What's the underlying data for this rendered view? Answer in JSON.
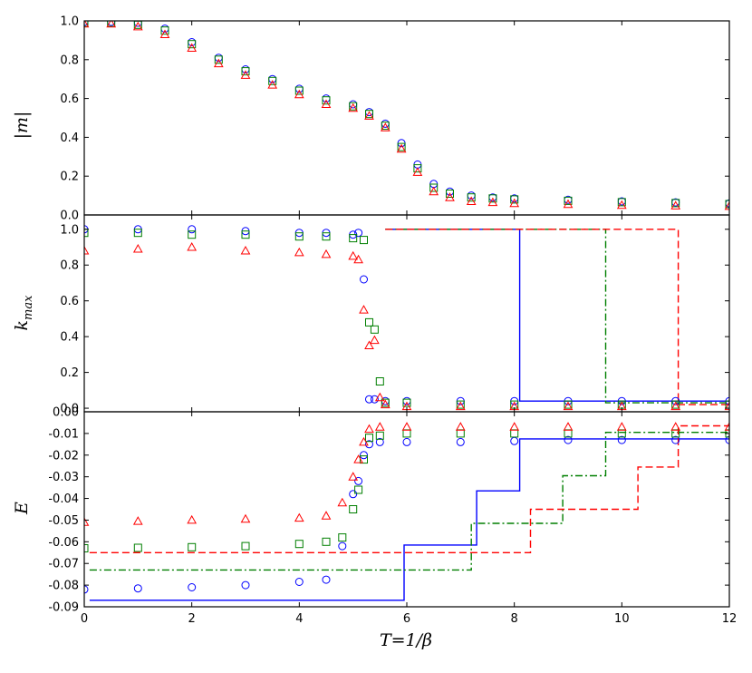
{
  "figure": {
    "xlabel": "T=1/β",
    "shared_x": {
      "range": [
        0,
        12
      ],
      "ticks": [
        0,
        2,
        4,
        6,
        8,
        10,
        12
      ],
      "tick_labels": [
        "0",
        "2",
        "4",
        "6",
        "8",
        "10",
        "12"
      ]
    }
  },
  "chart_data": [
    {
      "type": "scatter",
      "title": "",
      "xlabel": "T=1/β",
      "ylabel": "|m|",
      "xlim": [
        0,
        12
      ],
      "ylim": [
        0,
        1.0
      ],
      "yticks": [
        0.0,
        0.2,
        0.4,
        0.6,
        0.8,
        1.0
      ],
      "ytick_labels": [
        "0.0",
        "0.2",
        "0.4",
        "0.6",
        "0.8",
        "1.0"
      ],
      "grid": false,
      "legend": "none",
      "series": [
        {
          "name": "blue circles",
          "color": "#0000ff",
          "marker": "circle",
          "x": [
            0.0,
            0.5,
            1.0,
            1.5,
            2.0,
            2.5,
            3.0,
            3.5,
            4.0,
            4.5,
            5.0,
            5.3,
            5.6,
            5.9,
            6.2,
            6.5,
            6.8,
            7.2,
            7.6,
            8.0,
            9.0,
            10.0,
            11.0,
            12.0
          ],
          "y": [
            0.995,
            0.995,
            0.99,
            0.96,
            0.89,
            0.81,
            0.75,
            0.7,
            0.65,
            0.6,
            0.57,
            0.53,
            0.47,
            0.37,
            0.26,
            0.16,
            0.12,
            0.1,
            0.09,
            0.085,
            0.078,
            0.07,
            0.065,
            0.06
          ]
        },
        {
          "name": "green squares",
          "color": "#007f00",
          "marker": "square",
          "x": [
            0.0,
            0.5,
            1.0,
            1.5,
            2.0,
            2.5,
            3.0,
            3.5,
            4.0,
            4.5,
            5.0,
            5.3,
            5.6,
            5.9,
            6.2,
            6.5,
            6.8,
            7.2,
            7.6,
            8.0,
            9.0,
            10.0,
            11.0,
            12.0
          ],
          "y": [
            0.99,
            0.99,
            0.98,
            0.95,
            0.88,
            0.8,
            0.74,
            0.69,
            0.64,
            0.59,
            0.56,
            0.52,
            0.46,
            0.35,
            0.24,
            0.14,
            0.11,
            0.09,
            0.085,
            0.08,
            0.073,
            0.066,
            0.061,
            0.056
          ]
        },
        {
          "name": "red triangles",
          "color": "#ff0000",
          "marker": "triangle",
          "x": [
            0.0,
            0.5,
            1.0,
            1.5,
            2.0,
            2.5,
            3.0,
            3.5,
            4.0,
            4.5,
            5.0,
            5.3,
            5.6,
            5.9,
            6.2,
            6.5,
            6.8,
            7.2,
            7.6,
            8.0,
            9.0,
            10.0,
            11.0,
            12.0
          ],
          "y": [
            0.985,
            0.985,
            0.97,
            0.93,
            0.86,
            0.78,
            0.72,
            0.67,
            0.62,
            0.57,
            0.55,
            0.51,
            0.45,
            0.34,
            0.22,
            0.12,
            0.09,
            0.07,
            0.065,
            0.06,
            0.055,
            0.05,
            0.047,
            0.045
          ]
        }
      ]
    },
    {
      "type": "scatter",
      "title": "",
      "xlabel": "T=1/β",
      "ylabel": "k_max",
      "ylabel_base": "k",
      "ylabel_sub": "max",
      "xlim": [
        0,
        12
      ],
      "ylim": [
        -0.02,
        1.08
      ],
      "yticks": [
        0.0,
        0.2,
        0.4,
        0.6,
        0.8,
        1.0
      ],
      "ytick_labels": [
        "0.0",
        "0.2",
        "0.4",
        "0.6",
        "0.8",
        "1.0"
      ],
      "grid": false,
      "legend": "none",
      "series": [
        {
          "name": "blue circles",
          "color": "#0000ff",
          "marker": "circle",
          "x": [
            0.0,
            1.0,
            2.0,
            3.0,
            4.0,
            4.5,
            5.0,
            5.1,
            5.2,
            5.3,
            5.4,
            5.6,
            6.0,
            7.0,
            8.0,
            9.0,
            10.0,
            11.0,
            12.0
          ],
          "y": [
            1.0,
            1.0,
            1.0,
            0.99,
            0.98,
            0.98,
            0.97,
            0.98,
            0.72,
            0.05,
            0.05,
            0.04,
            0.04,
            0.04,
            0.04,
            0.04,
            0.04,
            0.04,
            0.04
          ]
        },
        {
          "name": "green squares",
          "color": "#007f00",
          "marker": "square",
          "x": [
            0.0,
            1.0,
            2.0,
            3.0,
            4.0,
            4.5,
            5.0,
            5.2,
            5.3,
            5.4,
            5.5,
            5.6,
            6.0,
            7.0,
            8.0,
            9.0,
            10.0,
            11.0,
            12.0
          ],
          "y": [
            0.98,
            0.98,
            0.97,
            0.97,
            0.96,
            0.96,
            0.95,
            0.94,
            0.48,
            0.44,
            0.15,
            0.03,
            0.03,
            0.02,
            0.02,
            0.02,
            0.02,
            0.02,
            0.02
          ]
        },
        {
          "name": "red triangles",
          "color": "#ff0000",
          "marker": "triangle",
          "x": [
            0.0,
            1.0,
            2.0,
            3.0,
            4.0,
            4.5,
            5.0,
            5.1,
            5.2,
            5.3,
            5.4,
            5.5,
            5.6,
            6.0,
            7.0,
            8.0,
            9.0,
            10.0,
            11.0,
            12.0
          ],
          "y": [
            0.88,
            0.89,
            0.9,
            0.88,
            0.87,
            0.86,
            0.85,
            0.83,
            0.55,
            0.35,
            0.38,
            0.06,
            0.02,
            0.01,
            0.01,
            0.01,
            0.01,
            0.01,
            0.01,
            0.01
          ]
        },
        {
          "name": "blue solid step",
          "color": "#0000ff",
          "style": "solid",
          "marker": "none",
          "x": [
            5.6,
            8.1,
            8.1,
            12.0
          ],
          "y": [
            1.0,
            1.0,
            0.04,
            0.04
          ]
        },
        {
          "name": "green dash-dot step",
          "color": "#007f00",
          "style": "dashdot",
          "marker": "none",
          "x": [
            5.6,
            9.7,
            9.7,
            12.0
          ],
          "y": [
            1.0,
            1.0,
            0.03,
            0.03
          ]
        },
        {
          "name": "red dashed step",
          "color": "#ff0000",
          "style": "dashed",
          "marker": "none",
          "x": [
            5.6,
            11.05,
            11.05,
            12.0
          ],
          "y": [
            1.0,
            1.0,
            0.02,
            0.02
          ]
        }
      ]
    },
    {
      "type": "scatter",
      "title": "",
      "xlabel": "T=1/β",
      "ylabel": "E",
      "xlim": [
        0,
        12
      ],
      "ylim": [
        -0.09,
        0.0
      ],
      "yticks": [
        0.0,
        -0.01,
        -0.02,
        -0.03,
        -0.04,
        -0.05,
        -0.06,
        -0.07,
        -0.08,
        -0.09
      ],
      "ytick_labels": [
        "0.00",
        "-0.01",
        "-0.02",
        "-0.03",
        "-0.04",
        "-0.05",
        "-0.06",
        "-0.07",
        "-0.08",
        "-0.09"
      ],
      "grid": false,
      "legend": "none",
      "series": [
        {
          "name": "blue circles",
          "color": "#0000ff",
          "marker": "circle",
          "x": [
            0.0,
            1.0,
            2.0,
            3.0,
            4.0,
            4.5,
            4.8,
            5.0,
            5.1,
            5.2,
            5.3,
            5.5,
            6.0,
            7.0,
            8.0,
            9.0,
            10.0,
            11.0,
            12.0
          ],
          "y": [
            -0.082,
            -0.0815,
            -0.081,
            -0.08,
            -0.0785,
            -0.0775,
            -0.062,
            -0.038,
            -0.032,
            -0.02,
            -0.015,
            -0.014,
            -0.014,
            -0.014,
            -0.0135,
            -0.013,
            -0.013,
            -0.013,
            -0.013
          ]
        },
        {
          "name": "green squares",
          "color": "#007f00",
          "marker": "square",
          "x": [
            0.0,
            1.0,
            2.0,
            3.0,
            4.0,
            4.5,
            4.8,
            5.0,
            5.1,
            5.2,
            5.3,
            5.5,
            6.0,
            7.0,
            8.0,
            9.0,
            10.0,
            11.0,
            12.0
          ],
          "y": [
            -0.063,
            -0.0628,
            -0.0625,
            -0.062,
            -0.061,
            -0.06,
            -0.058,
            -0.045,
            -0.036,
            -0.022,
            -0.012,
            -0.011,
            -0.01,
            -0.01,
            -0.01,
            -0.01,
            -0.01,
            -0.01,
            -0.01
          ]
        },
        {
          "name": "red triangles",
          "color": "#ff0000",
          "marker": "triangle",
          "x": [
            0.0,
            1.0,
            2.0,
            3.0,
            4.0,
            4.5,
            4.8,
            5.0,
            5.1,
            5.2,
            5.3,
            5.5,
            6.0,
            7.0,
            8.0,
            9.0,
            10.0,
            11.0,
            12.0
          ],
          "y": [
            -0.051,
            -0.0505,
            -0.05,
            -0.0495,
            -0.049,
            -0.048,
            -0.042,
            -0.03,
            -0.022,
            -0.014,
            -0.008,
            -0.007,
            -0.007,
            -0.007,
            -0.007,
            -0.007,
            -0.007,
            -0.007,
            -0.007
          ]
        },
        {
          "name": "blue solid step",
          "color": "#0000ff",
          "style": "solid",
          "marker": "none",
          "x": [
            0.1,
            5.95,
            5.95,
            7.3,
            7.3,
            8.1,
            8.1,
            12.0
          ],
          "y": [
            -0.087,
            -0.087,
            -0.0615,
            -0.0615,
            -0.0365,
            -0.0365,
            -0.0125,
            -0.0125
          ]
        },
        {
          "name": "green dash-dot step",
          "color": "#007f00",
          "style": "dashdot",
          "marker": "none",
          "x": [
            0.1,
            7.2,
            7.2,
            8.9,
            8.9,
            9.7,
            9.7,
            12.0
          ],
          "y": [
            -0.073,
            -0.073,
            -0.0515,
            -0.0515,
            -0.0295,
            -0.0295,
            -0.0095,
            -0.0095
          ]
        },
        {
          "name": "red dashed step",
          "color": "#ff0000",
          "style": "dashed",
          "marker": "none",
          "x": [
            0.1,
            8.3,
            8.3,
            10.3,
            10.3,
            11.05,
            11.05,
            12.0
          ],
          "y": [
            -0.065,
            -0.065,
            -0.045,
            -0.045,
            -0.0255,
            -0.0255,
            -0.0065,
            -0.0065
          ]
        }
      ]
    }
  ]
}
